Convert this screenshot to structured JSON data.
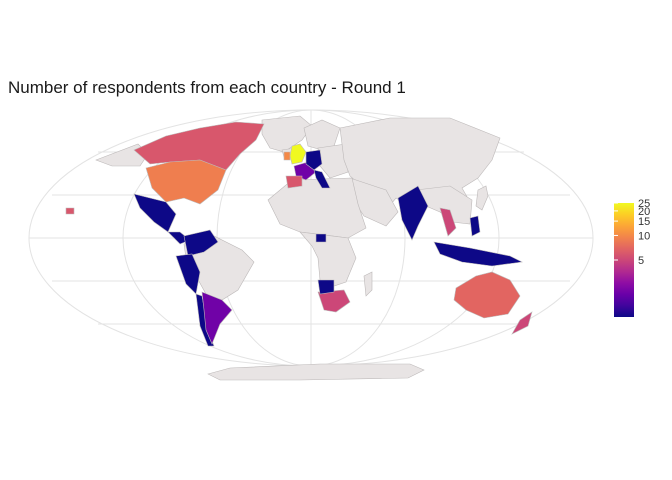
{
  "title": "Number of respondents from each country - Round 1",
  "colors": {
    "land": "#e8e4e4",
    "border": "#bdb9b9",
    "graticule": "#e3e3e3",
    "scale": [
      "#0d0887",
      "#41049d",
      "#6a00a8",
      "#8f0da4",
      "#b12a90",
      "#cc4778",
      "#e16462",
      "#f2844b",
      "#fca636",
      "#fcce25",
      "#f0f921"
    ]
  },
  "legend": {
    "placement": "right",
    "scale": "log",
    "ticks": [
      "5",
      "10",
      "15",
      "20",
      "25"
    ]
  },
  "regions": [
    {
      "name": "Canada",
      "value": 6
    },
    {
      "name": "United States",
      "value": 9
    },
    {
      "name": "Mexico",
      "value": 1
    },
    {
      "name": "Central America",
      "value": 1
    },
    {
      "name": "Colombia & Venezuela",
      "value": 1
    },
    {
      "name": "Peru",
      "value": 1
    },
    {
      "name": "Chile",
      "value": 1
    },
    {
      "name": "Argentina",
      "value": 2
    },
    {
      "name": "United Kingdom",
      "value": 25
    },
    {
      "name": "Ireland",
      "value": 10
    },
    {
      "name": "France",
      "value": 2
    },
    {
      "name": "Germany",
      "value": 1
    },
    {
      "name": "Spain",
      "value": 6
    },
    {
      "name": "Italy",
      "value": 1
    },
    {
      "name": "Uganda",
      "value": 1
    },
    {
      "name": "South Africa",
      "value": 5
    },
    {
      "name": "Zimbabwe",
      "value": 1
    },
    {
      "name": "India",
      "value": 1
    },
    {
      "name": "Thailand",
      "value": 5
    },
    {
      "name": "Indonesia",
      "value": 1
    },
    {
      "name": "Philippines",
      "value": 1
    },
    {
      "name": "Australia",
      "value": 7
    },
    {
      "name": "New Zealand",
      "value": 5
    },
    {
      "name": "Hawaii",
      "value": 6
    }
  ]
}
